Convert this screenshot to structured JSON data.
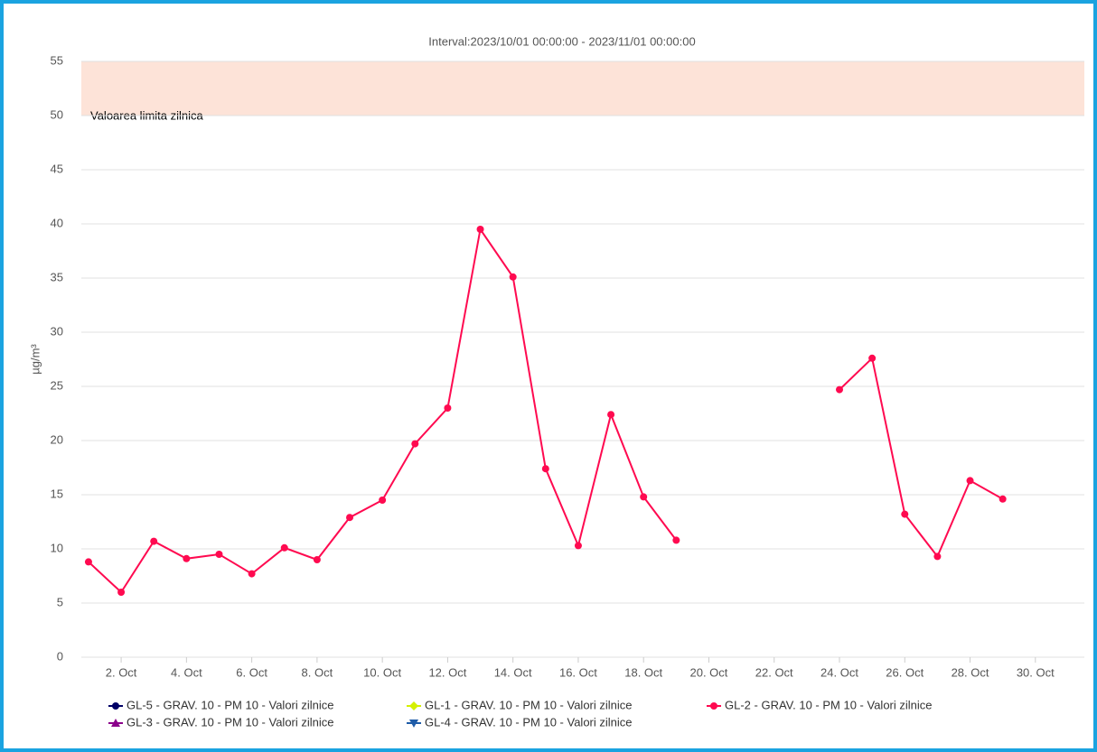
{
  "chart_data": {
    "type": "line",
    "title": "Interval:2023/10/01 00:00:00 - 2023/11/01 00:00:00",
    "y_label": "µg/m³",
    "x": [
      1,
      2,
      3,
      4,
      5,
      6,
      7,
      8,
      9,
      10,
      11,
      12,
      13,
      14,
      15,
      16,
      17,
      18,
      19,
      20,
      21,
      22,
      23,
      24,
      25,
      26,
      27,
      28,
      29
    ],
    "series": [
      {
        "name": "GL-5 - GRAV. 10 - PM 10 - Valori zilnice",
        "color": "#000066",
        "marker": "circle",
        "values": [
          null,
          null,
          null,
          null,
          null,
          null,
          null,
          null,
          null,
          null,
          null,
          null,
          null,
          null,
          null,
          null,
          null,
          null,
          null,
          null,
          null,
          null,
          null,
          null,
          null,
          null,
          null,
          null,
          null
        ]
      },
      {
        "name": "GL-1 - GRAV. 10 - PM 10 - Valori zilnice",
        "color": "#d4f000",
        "marker": "diamond",
        "values": [
          null,
          null,
          null,
          null,
          null,
          null,
          null,
          null,
          null,
          null,
          null,
          null,
          null,
          null,
          null,
          null,
          null,
          null,
          null,
          null,
          null,
          null,
          null,
          null,
          null,
          null,
          null,
          null,
          null
        ]
      },
      {
        "name": "GL-2 - GRAV. 10 - PM 10 - Valori zilnice",
        "color": "#ff0a50",
        "marker": "circle",
        "values": [
          8.8,
          6.0,
          10.7,
          9.1,
          9.5,
          7.7,
          10.1,
          9.0,
          12.9,
          14.5,
          19.7,
          23.0,
          39.5,
          35.1,
          17.4,
          10.3,
          22.4,
          14.8,
          10.8,
          null,
          null,
          null,
          null,
          24.7,
          27.6,
          13.2,
          9.3,
          16.3,
          14.6
        ]
      },
      {
        "name": "GL-3 - GRAV. 10 - PM 10 - Valori zilnice",
        "color": "#8b008b",
        "marker": "triangle",
        "values": [
          null,
          null,
          null,
          null,
          null,
          null,
          null,
          null,
          null,
          null,
          null,
          null,
          null,
          null,
          null,
          null,
          null,
          null,
          null,
          null,
          null,
          null,
          null,
          null,
          null,
          null,
          null,
          null,
          null
        ]
      },
      {
        "name": "GL-4 - GRAV. 10 - PM 10 - Valori zilnice",
        "color": "#1f5ca8",
        "marker": "triangle-down",
        "values": [
          null,
          null,
          null,
          null,
          null,
          null,
          null,
          null,
          null,
          null,
          null,
          null,
          null,
          null,
          null,
          null,
          null,
          null,
          null,
          null,
          null,
          null,
          null,
          null,
          null,
          null,
          null,
          null,
          null
        ]
      }
    ],
    "plot_band": {
      "from": 50,
      "to": 55,
      "label": "Valoarea limita zilnica",
      "color": "#fde3d8"
    },
    "xlim": [
      0.78,
      31.5
    ],
    "xticks": [
      {
        "value": 2,
        "label": "2. Oct"
      },
      {
        "value": 4,
        "label": "4. Oct"
      },
      {
        "value": 6,
        "label": "6. Oct"
      },
      {
        "value": 8,
        "label": "8. Oct"
      },
      {
        "value": 10,
        "label": "10. Oct"
      },
      {
        "value": 12,
        "label": "12. Oct"
      },
      {
        "value": 14,
        "label": "14. Oct"
      },
      {
        "value": 16,
        "label": "16. Oct"
      },
      {
        "value": 18,
        "label": "18. Oct"
      },
      {
        "value": 20,
        "label": "20. Oct"
      },
      {
        "value": 22,
        "label": "22. Oct"
      },
      {
        "value": 24,
        "label": "24. Oct"
      },
      {
        "value": 26,
        "label": "26. Oct"
      },
      {
        "value": 28,
        "label": "28. Oct"
      },
      {
        "value": 30,
        "label": "30. Oct"
      }
    ],
    "ylim": [
      0,
      55
    ],
    "yticks": [
      0,
      5,
      10,
      15,
      20,
      25,
      30,
      35,
      40,
      45,
      50,
      55
    ],
    "grid": true,
    "legend": "bottom"
  }
}
